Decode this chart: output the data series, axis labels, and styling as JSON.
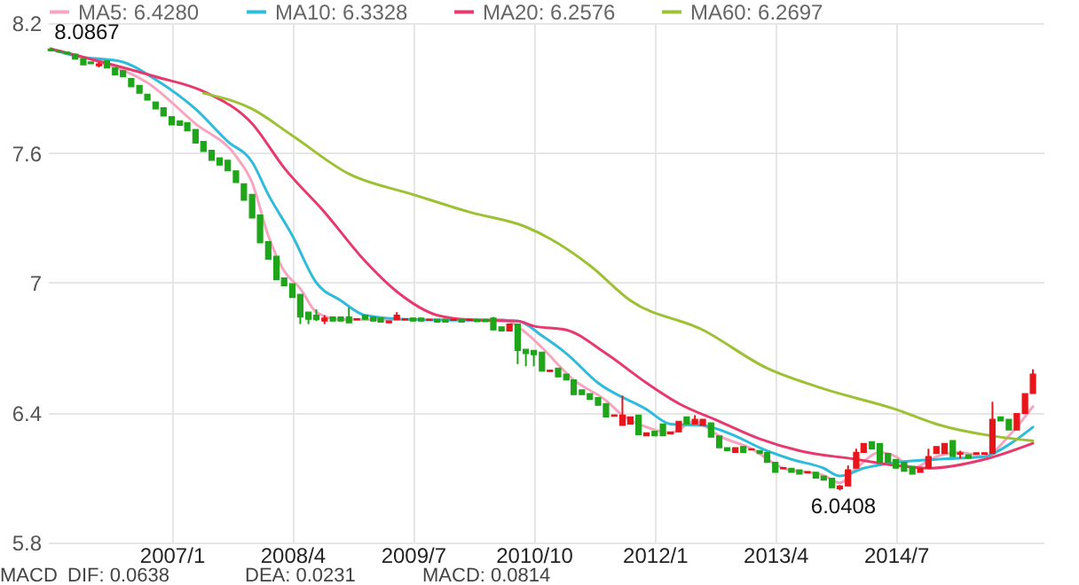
{
  "chart_data": {
    "type": "candlestick",
    "x": [
      "2005-10",
      "2005-11",
      "2005-12",
      "2006-01",
      "2006-02",
      "2006-03",
      "2006-04",
      "2006-05",
      "2006-06",
      "2006-07",
      "2006-08",
      "2006-09",
      "2006-10",
      "2006-11",
      "2006-12",
      "2007-01",
      "2007-02",
      "2007-03",
      "2007-04",
      "2007-05",
      "2007-06",
      "2007-07",
      "2007-08",
      "2007-09",
      "2007-10",
      "2007-11",
      "2007-12",
      "2008-01",
      "2008-02",
      "2008-03",
      "2008-04",
      "2008-05",
      "2008-06",
      "2008-07",
      "2008-08",
      "2008-09",
      "2008-10",
      "2008-11",
      "2008-12",
      "2009-01",
      "2009-02",
      "2009-03",
      "2009-04",
      "2009-05",
      "2009-06",
      "2009-07",
      "2009-08",
      "2009-09",
      "2009-10",
      "2009-11",
      "2009-12",
      "2010-01",
      "2010-02",
      "2010-03",
      "2010-04",
      "2010-05",
      "2010-06",
      "2010-07",
      "2010-08",
      "2010-09",
      "2010-10",
      "2010-11",
      "2010-12",
      "2011-01",
      "2011-02",
      "2011-03",
      "2011-04",
      "2011-05",
      "2011-06",
      "2011-07",
      "2011-08",
      "2011-09",
      "2011-10",
      "2011-11",
      "2011-12",
      "2012-01",
      "2012-02",
      "2012-03",
      "2012-04",
      "2012-05",
      "2012-06",
      "2012-07",
      "2012-08",
      "2012-09",
      "2012-10",
      "2012-11",
      "2012-12",
      "2013-01",
      "2013-02",
      "2013-03",
      "2013-04",
      "2013-05",
      "2013-06",
      "2013-07",
      "2013-08",
      "2013-09",
      "2013-10",
      "2013-11",
      "2013-12",
      "2014-01",
      "2014-02",
      "2014-03",
      "2014-04",
      "2014-05",
      "2014-06",
      "2014-07",
      "2014-08",
      "2014-09",
      "2014-10",
      "2014-11",
      "2014-12",
      "2015-01",
      "2015-02",
      "2015-03",
      "2015-04",
      "2015-05",
      "2015-06",
      "2015-07",
      "2015-08",
      "2015-09",
      "2015-10",
      "2015-11",
      "2015-12"
    ],
    "ohlc": [
      [
        8.08,
        8.0867,
        8.07,
        8.072
      ],
      [
        8.072,
        8.075,
        8.063,
        8.066
      ],
      [
        8.065,
        8.065,
        8.058,
        8.058
      ],
      [
        8.056,
        8.056,
        8.034,
        8.034
      ],
      [
        8.034,
        8.034,
        8.007,
        8.007
      ],
      [
        8.02,
        8.02,
        8.012,
        8.012
      ],
      [
        8.003,
        8.02,
        7.995,
        8.011
      ],
      [
        8.026,
        8.026,
        7.993,
        7.993
      ],
      [
        7.993,
        7.993,
        7.961,
        7.961
      ],
      [
        7.98,
        7.98,
        7.952,
        7.952
      ],
      [
        7.944,
        7.944,
        7.906,
        7.906
      ],
      [
        7.912,
        7.912,
        7.876,
        7.876
      ],
      [
        7.871,
        7.871,
        7.844,
        7.844
      ],
      [
        7.835,
        7.835,
        7.803,
        7.803
      ],
      [
        7.808,
        7.808,
        7.77,
        7.77
      ],
      [
        7.767,
        7.767,
        7.729,
        7.729
      ],
      [
        7.748,
        7.748,
        7.727,
        7.727
      ],
      [
        7.74,
        7.74,
        7.702,
        7.702
      ],
      [
        7.708,
        7.708,
        7.645,
        7.645
      ],
      [
        7.653,
        7.653,
        7.607,
        7.607
      ],
      [
        7.612,
        7.612,
        7.566,
        7.566
      ],
      [
        7.577,
        7.577,
        7.544,
        7.544
      ],
      [
        7.566,
        7.566,
        7.517,
        7.517
      ],
      [
        7.517,
        7.517,
        7.463,
        7.463
      ],
      [
        7.457,
        7.457,
        7.381,
        7.381
      ],
      [
        7.408,
        7.408,
        7.299,
        7.299
      ],
      [
        7.313,
        7.313,
        7.185,
        7.185
      ],
      [
        7.19,
        7.19,
        7.109,
        7.109
      ],
      [
        7.122,
        7.122,
        7.014,
        7.014
      ],
      [
        7.022,
        7.022,
        6.986,
        6.986
      ],
      [
        6.995,
        6.995,
        6.932,
        6.932
      ],
      [
        6.946,
        6.946,
        6.809,
        6.842
      ],
      [
        6.864,
        6.864,
        6.809,
        6.831
      ],
      [
        6.85,
        6.877,
        6.823,
        6.829
      ],
      [
        6.823,
        6.85,
        6.809,
        6.837
      ],
      [
        6.842,
        6.842,
        6.823,
        6.823
      ],
      [
        6.842,
        6.842,
        6.823,
        6.823
      ],
      [
        6.842,
        6.886,
        6.815,
        6.815
      ],
      [
        6.828,
        6.834,
        6.828,
        6.834
      ],
      [
        6.85,
        6.85,
        6.831,
        6.831
      ],
      [
        6.842,
        6.842,
        6.823,
        6.823
      ],
      [
        6.837,
        6.837,
        6.818,
        6.818
      ],
      [
        6.815,
        6.823,
        6.815,
        6.823
      ],
      [
        6.829,
        6.864,
        6.829,
        6.85
      ],
      [
        6.828,
        6.834,
        6.828,
        6.834
      ],
      [
        6.837,
        6.837,
        6.823,
        6.823
      ],
      [
        6.837,
        6.837,
        6.823,
        6.823
      ],
      [
        6.826,
        6.831,
        6.826,
        6.831
      ],
      [
        6.831,
        6.831,
        6.818,
        6.818
      ],
      [
        6.831,
        6.831,
        6.818,
        6.818
      ],
      [
        6.826,
        6.831,
        6.826,
        6.831
      ],
      [
        6.831,
        6.831,
        6.818,
        6.818
      ],
      [
        6.826,
        6.831,
        6.826,
        6.831
      ],
      [
        6.831,
        6.831,
        6.82,
        6.82
      ],
      [
        6.831,
        6.831,
        6.82,
        6.82
      ],
      [
        6.837,
        6.842,
        6.782,
        6.782
      ],
      [
        6.796,
        6.796,
        6.777,
        6.777
      ],
      [
        6.777,
        6.809,
        6.777,
        6.809
      ],
      [
        6.809,
        6.809,
        6.624,
        6.687
      ],
      [
        6.692,
        6.692,
        6.614,
        6.673
      ],
      [
        6.687,
        6.687,
        6.614,
        6.668
      ],
      [
        6.679,
        6.679,
        6.592,
        6.592
      ],
      [
        6.59,
        6.596,
        6.59,
        6.596
      ],
      [
        6.605,
        6.605,
        6.565,
        6.565
      ],
      [
        6.578,
        6.578,
        6.551,
        6.551
      ],
      [
        6.551,
        6.551,
        6.483,
        6.483
      ],
      [
        6.505,
        6.505,
        6.483,
        6.483
      ],
      [
        6.488,
        6.488,
        6.461,
        6.461
      ],
      [
        6.469,
        6.469,
        6.434,
        6.434
      ],
      [
        6.442,
        6.442,
        6.38,
        6.38
      ],
      [
        6.383,
        6.389,
        6.383,
        6.389
      ],
      [
        6.341,
        6.478,
        6.341,
        6.388
      ],
      [
        6.347,
        6.38,
        6.347,
        6.38
      ],
      [
        6.388,
        6.388,
        6.298,
        6.298
      ],
      [
        6.293,
        6.306,
        6.293,
        6.306
      ],
      [
        6.314,
        6.314,
        6.293,
        6.293
      ],
      [
        6.347,
        6.347,
        6.293,
        6.293
      ],
      [
        6.301,
        6.311,
        6.301,
        6.311
      ],
      [
        6.311,
        6.36,
        6.311,
        6.36
      ],
      [
        6.38,
        6.38,
        6.347,
        6.347
      ],
      [
        6.347,
        6.388,
        6.347,
        6.369
      ],
      [
        6.341,
        6.369,
        6.341,
        6.369
      ],
      [
        6.352,
        6.352,
        6.287,
        6.287
      ],
      [
        6.292,
        6.292,
        6.238,
        6.238
      ],
      [
        6.238,
        6.238,
        6.224,
        6.224
      ],
      [
        6.216,
        6.238,
        6.216,
        6.238
      ],
      [
        6.243,
        6.243,
        6.216,
        6.216
      ],
      [
        6.227,
        6.233,
        6.227,
        6.233
      ],
      [
        6.224,
        6.224,
        6.211,
        6.211
      ],
      [
        6.216,
        6.216,
        6.17,
        6.17
      ],
      [
        6.17,
        6.17,
        6.124,
        6.124
      ],
      [
        6.14,
        6.146,
        6.14,
        6.146
      ],
      [
        6.143,
        6.143,
        6.124,
        6.124
      ],
      [
        6.135,
        6.135,
        6.116,
        6.116
      ],
      [
        6.121,
        6.127,
        6.121,
        6.127
      ],
      [
        6.124,
        6.124,
        6.097,
        6.097
      ],
      [
        6.107,
        6.107,
        6.088,
        6.088
      ],
      [
        6.097,
        6.097,
        6.053,
        6.053
      ],
      [
        6.048,
        6.065,
        6.0408,
        6.061
      ],
      [
        6.061,
        6.156,
        6.061,
        6.135
      ],
      [
        6.143,
        6.233,
        6.143,
        6.216
      ],
      [
        6.216,
        6.257,
        6.216,
        6.257
      ],
      [
        6.265,
        6.265,
        6.233,
        6.233
      ],
      [
        6.257,
        6.257,
        6.17,
        6.17
      ],
      [
        6.211,
        6.211,
        6.17,
        6.17
      ],
      [
        6.184,
        6.184,
        6.143,
        6.143
      ],
      [
        6.17,
        6.17,
        6.129,
        6.129
      ],
      [
        6.151,
        6.151,
        6.116,
        6.116
      ],
      [
        6.124,
        6.143,
        6.124,
        6.143
      ],
      [
        6.143,
        6.233,
        6.143,
        6.197
      ],
      [
        6.211,
        6.243,
        6.211,
        6.243
      ],
      [
        6.211,
        6.257,
        6.211,
        6.257
      ],
      [
        6.271,
        6.271,
        6.197,
        6.197
      ],
      [
        6.208,
        6.224,
        6.189,
        6.214
      ],
      [
        6.205,
        6.205,
        6.189,
        6.189
      ],
      [
        6.208,
        6.214,
        6.208,
        6.214
      ],
      [
        6.208,
        6.214,
        6.208,
        6.214
      ],
      [
        6.211,
        6.45,
        6.211,
        6.369
      ],
      [
        6.38,
        6.38,
        6.361,
        6.361
      ],
      [
        6.369,
        6.369,
        6.32,
        6.32
      ],
      [
        6.32,
        6.396,
        6.32,
        6.396
      ],
      [
        6.396,
        6.488,
        6.396,
        6.488
      ],
      [
        6.488,
        6.6,
        6.488,
        6.578
      ]
    ],
    "colors": [
      "#1ea51a",
      "#1ea51a",
      "#1ea51a",
      "#1ea51a",
      "#1ea51a",
      "#1ea51a",
      "#e8151a",
      "#1ea51a",
      "#1ea51a",
      "#1ea51a",
      "#1ea51a",
      "#1ea51a",
      "#1ea51a",
      "#1ea51a",
      "#1ea51a",
      "#1ea51a",
      "#1ea51a",
      "#1ea51a",
      "#1ea51a",
      "#1ea51a",
      "#1ea51a",
      "#1ea51a",
      "#1ea51a",
      "#1ea51a",
      "#1ea51a",
      "#1ea51a",
      "#1ea51a",
      "#1ea51a",
      "#1ea51a",
      "#1ea51a",
      "#1ea51a",
      "#1ea51a",
      "#1ea51a",
      "#1ea51a",
      "#e8151a",
      "#1ea51a",
      "#1ea51a",
      "#1ea51a",
      "#e8151a",
      "#1ea51a",
      "#1ea51a",
      "#1ea51a",
      "#e8151a",
      "#e8151a",
      "#e8151a",
      "#1ea51a",
      "#1ea51a",
      "#e8151a",
      "#1ea51a",
      "#1ea51a",
      "#e8151a",
      "#1ea51a",
      "#e8151a",
      "#1ea51a",
      "#1ea51a",
      "#1ea51a",
      "#1ea51a",
      "#e8151a",
      "#1ea51a",
      "#1ea51a",
      "#1ea51a",
      "#1ea51a",
      "#e8151a",
      "#1ea51a",
      "#1ea51a",
      "#1ea51a",
      "#1ea51a",
      "#1ea51a",
      "#1ea51a",
      "#1ea51a",
      "#e8151a",
      "#e8151a",
      "#e8151a",
      "#1ea51a",
      "#e8151a",
      "#1ea51a",
      "#1ea51a",
      "#e8151a",
      "#e8151a",
      "#1ea51a",
      "#e8151a",
      "#e8151a",
      "#1ea51a",
      "#1ea51a",
      "#1ea51a",
      "#e8151a",
      "#1ea51a",
      "#e8151a",
      "#1ea51a",
      "#1ea51a",
      "#1ea51a",
      "#e8151a",
      "#1ea51a",
      "#1ea51a",
      "#e8151a",
      "#1ea51a",
      "#1ea51a",
      "#1ea51a",
      "#e8151a",
      "#e8151a",
      "#e8151a",
      "#e8151a",
      "#1ea51a",
      "#1ea51a",
      "#1ea51a",
      "#1ea51a",
      "#1ea51a",
      "#1ea51a",
      "#e8151a",
      "#e8151a",
      "#e8151a",
      "#e8151a",
      "#1ea51a",
      "#e8151a",
      "#1ea51a",
      "#e8151a",
      "#e8151a",
      "#e8151a",
      "#1ea51a",
      "#1ea51a",
      "#e8151a",
      "#e8151a",
      "#e8151a"
    ],
    "series": [
      {
        "name": "MA5: 6.4280",
        "type": "line",
        "color": "#f7a4bf",
        "x": [
          "2005-10",
          "2006-04",
          "2006-10",
          "2007-04",
          "2007-09",
          "2007-11",
          "2008-01",
          "2008-03",
          "2008-05",
          "2008-07",
          "2008-10",
          "2010-06",
          "2010-09",
          "2010-11",
          "2011-03",
          "2011-07",
          "2011-09",
          "2011-12",
          "2012-03",
          "2012-06",
          "2012-09",
          "2013-01",
          "2013-05",
          "2013-10",
          "2013-12",
          "2014-02",
          "2014-05",
          "2014-07",
          "2014-09",
          "2014-12",
          "2015-03",
          "2015-06",
          "2015-09",
          "2015-12"
        ],
        "values": [
          8.08,
          8.02,
          7.925,
          7.735,
          7.585,
          7.463,
          7.218,
          7.054,
          6.973,
          6.864,
          6.83,
          6.83,
          6.769,
          6.7,
          6.551,
          6.456,
          6.388,
          6.333,
          6.306,
          6.36,
          6.292,
          6.233,
          6.143,
          6.11,
          6.075,
          6.143,
          6.216,
          6.197,
          6.143,
          6.197,
          6.216,
          6.197,
          6.292,
          6.428
        ]
      },
      {
        "name": "MA10: 6.3328",
        "type": "line",
        "color": "#2fbbdb",
        "x": [
          "2005-10",
          "2006-01",
          "2006-07",
          "2006-11",
          "2007-04",
          "2007-08",
          "2007-11",
          "2008-01",
          "2008-04",
          "2008-07",
          "2008-10",
          "2009-01",
          "2009-07",
          "2010-08",
          "2010-11",
          "2011-02",
          "2011-06",
          "2011-12",
          "2012-03",
          "2012-07",
          "2012-11",
          "2013-02",
          "2013-06",
          "2013-10",
          "2013-12",
          "2014-03",
          "2014-07",
          "2014-12",
          "2015-06",
          "2015-09",
          "2015-12"
        ],
        "values": [
          8.08,
          8.048,
          8.02,
          7.939,
          7.803,
          7.653,
          7.558,
          7.408,
          7.218,
          7.0,
          6.918,
          6.85,
          6.83,
          6.823,
          6.755,
          6.673,
          6.537,
          6.415,
          6.347,
          6.341,
          6.292,
          6.238,
          6.184,
          6.143,
          6.107,
          6.143,
          6.17,
          6.184,
          6.197,
          6.252,
          6.333
        ]
      },
      {
        "name": "MA20: 6.2576",
        "type": "line",
        "color": "#e8396f",
        "x": [
          "2005-10",
          "2006-11",
          "2007-05",
          "2007-11",
          "2008-03",
          "2008-08",
          "2009-01",
          "2009-05",
          "2009-10",
          "2010-02",
          "2010-08",
          "2010-10",
          "2011-02",
          "2011-07",
          "2011-12",
          "2012-04",
          "2012-09",
          "2013-02",
          "2013-07",
          "2014-02",
          "2014-07",
          "2014-11",
          "2015-06",
          "2015-12"
        ],
        "values": [
          8.08,
          7.952,
          7.884,
          7.735,
          7.531,
          7.326,
          7.1,
          6.959,
          6.85,
          6.829,
          6.823,
          6.8,
          6.782,
          6.673,
          6.537,
          6.442,
          6.36,
          6.279,
          6.224,
          6.184,
          6.156,
          6.143,
          6.184,
          6.258
        ]
      },
      {
        "name": "MA60: 6.2697",
        "type": "line",
        "color": "#9dc134",
        "x": [
          "2007-05",
          "2007-11",
          "2008-04",
          "2008-11",
          "2009-07",
          "2010-02",
          "2010-09",
          "2010-12",
          "2011-05",
          "2011-10",
          "2012-07",
          "2013-03",
          "2013-10",
          "2014-07",
          "2014-12",
          "2015-07",
          "2015-12"
        ],
        "values": [
          7.876,
          7.803,
          7.68,
          7.503,
          7.408,
          7.326,
          7.258,
          7.204,
          7.08,
          6.918,
          6.782,
          6.605,
          6.51,
          6.415,
          6.347,
          6.292,
          6.27
        ]
      }
    ],
    "xlim": [
      "2005-09-20",
      "2016-01-10"
    ],
    "xticks": [
      {
        "value": "2007-01",
        "label": "2007/1"
      },
      {
        "value": "2008-04",
        "label": "2008/4"
      },
      {
        "value": "2009-07",
        "label": "2009/7"
      },
      {
        "value": "2010-10",
        "label": "2010/10"
      },
      {
        "value": "2012-01",
        "label": "2012/1"
      },
      {
        "value": "2013-04",
        "label": "2013/4"
      },
      {
        "value": "2014-07",
        "label": "2014/7"
      }
    ],
    "ylim": [
      5.8,
      8.2
    ],
    "yticks": [
      5.8,
      6.4,
      7,
      7.6,
      8.2
    ],
    "grid": true,
    "legend": "top",
    "annotations": [
      {
        "text": "8.0867",
        "x": "2005-10",
        "y": 8.0867
      },
      {
        "text": "6.0408",
        "x": "2013-12",
        "y": 6.0408
      },
      "MACD",
      "DIF: 0.0638",
      "DEA: 0.0231",
      "MACD: 0.0814"
    ]
  }
}
